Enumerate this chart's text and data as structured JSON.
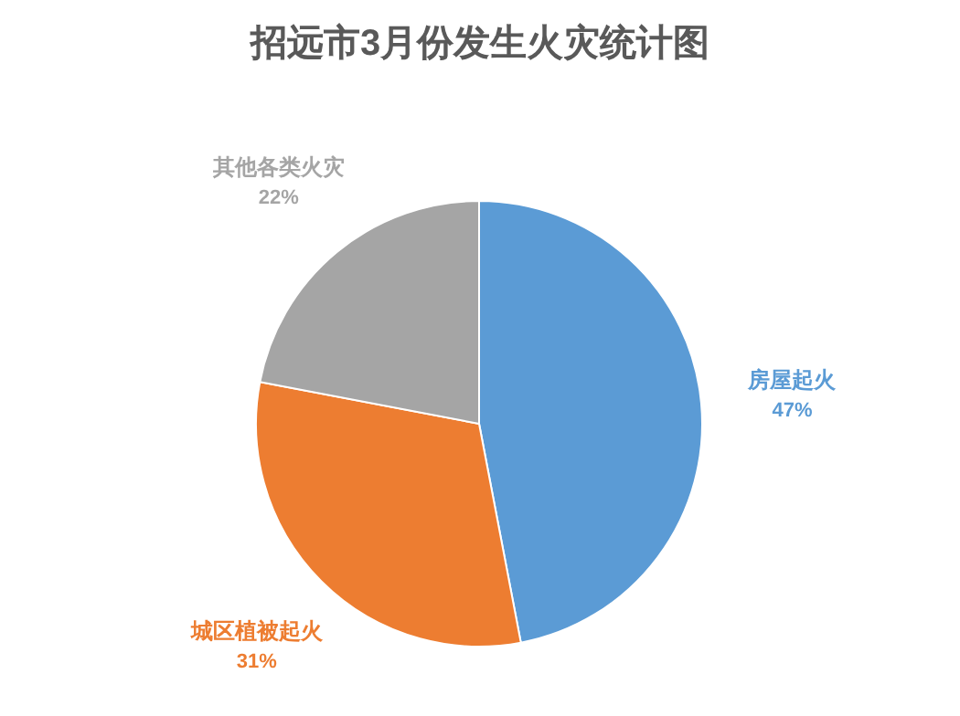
{
  "chart_data": {
    "type": "pie",
    "title": "招远市3月份发生火灾统计图",
    "categories": [
      "房屋起火",
      "城区植被起火",
      "其他各类火灾"
    ],
    "values": [
      47,
      31,
      22
    ],
    "colors": [
      "#5b9bd5",
      "#ed7d31",
      "#a5a5a5"
    ],
    "value_labels": [
      "47%",
      "31%",
      "22%"
    ],
    "legend": false
  }
}
